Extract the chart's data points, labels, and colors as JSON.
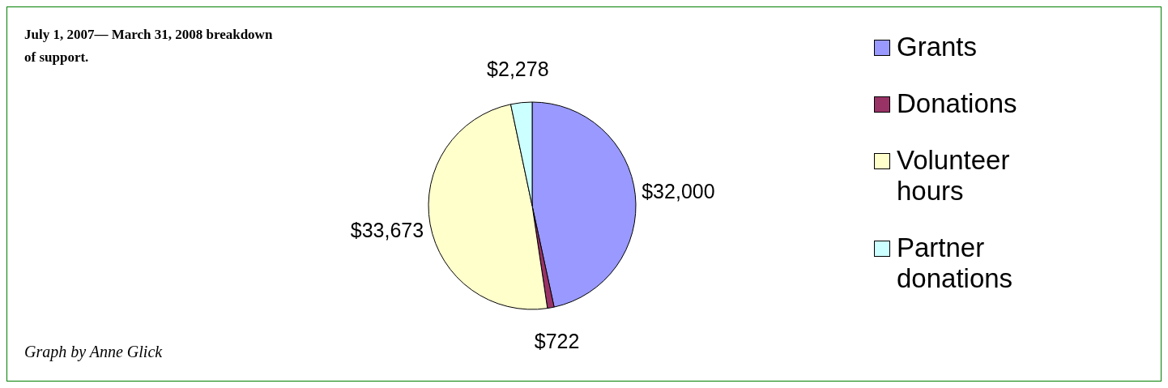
{
  "chart_data": {
    "type": "pie",
    "title": "July 1, 2007— March 31, 2008 breakdown of support.",
    "annotations": [
      "Graph by Anne Glick"
    ],
    "categories": [
      "Grants",
      "Donations",
      "Volunteer hours",
      "Partner donations"
    ],
    "values": [
      32000,
      722,
      33673,
      2278
    ],
    "value_labels": [
      "$32,000",
      "$722",
      "$33,673",
      "$2,278"
    ],
    "colors": [
      "#9999ff",
      "#993366",
      "#ffffcc",
      "#ccffff"
    ],
    "legend": "right"
  }
}
